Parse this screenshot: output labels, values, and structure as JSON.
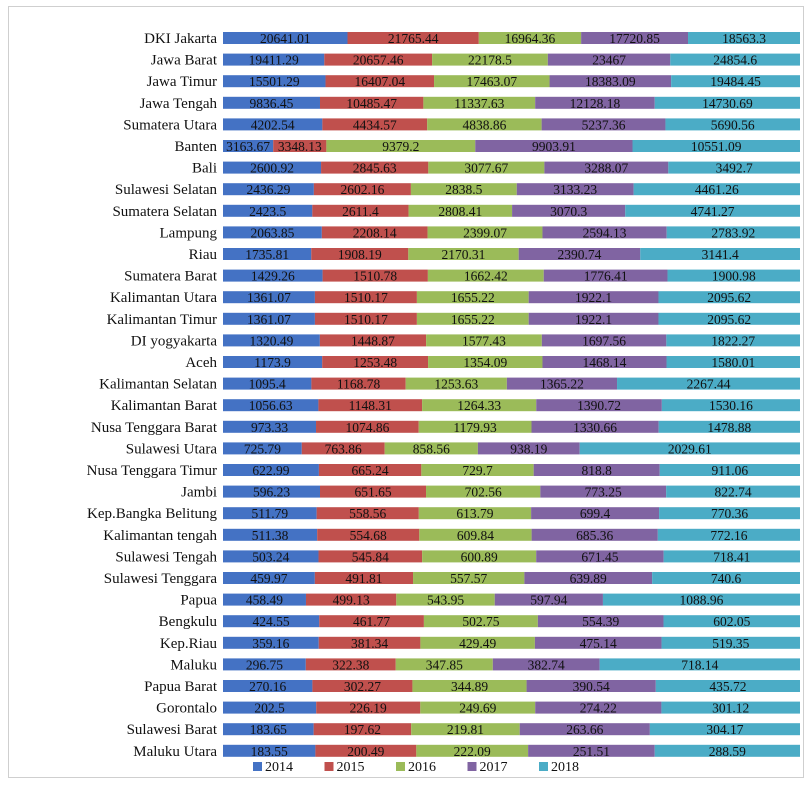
{
  "chart_data": {
    "type": "bar",
    "orientation": "horizontal",
    "stacked": "100%",
    "legend_position": "bottom",
    "grid": false,
    "categories": [
      "DKI Jakarta",
      "Jawa Barat",
      "Jawa Timur",
      "Jawa Tengah",
      "Sumatera Utara",
      "Banten",
      "Bali",
      "Sulawesi Selatan",
      "Sumatera Selatan",
      "Lampung",
      "Riau",
      "Sumatera Barat",
      "Kalimantan Utara",
      "Kalimantan Timur",
      "DI yogyakarta",
      "Aceh",
      "Kalimantan Selatan",
      "Kalimantan Barat",
      "Nusa Tenggara Barat",
      "Sulawesi Utara",
      "Nusa Tenggara Timur",
      "Jambi",
      "Kep.Bangka Belitung",
      "Kalimantan tengah",
      "Sulawesi Tengah",
      "Sulawesi Tenggara",
      "Papua",
      "Bengkulu",
      "Kep.Riau",
      "Maluku",
      "Papua Barat",
      "Gorontalo",
      "Sulawesi Barat",
      "Maluku Utara"
    ],
    "series": [
      {
        "name": "2014",
        "color": "#4472c4",
        "values": [
          20641.01,
          19411.29,
          15501.29,
          9836.45,
          4202.54,
          3163.67,
          2600.92,
          2436.29,
          2423.5,
          2063.85,
          1735.81,
          1429.26,
          1361.07,
          1361.07,
          1320.49,
          1173.9,
          1095.4,
          1056.63,
          973.33,
          725.79,
          622.99,
          596.23,
          511.79,
          511.38,
          503.24,
          459.97,
          458.49,
          424.55,
          359.16,
          296.75,
          270.16,
          202.5,
          183.65,
          183.55
        ]
      },
      {
        "name": "2015",
        "color": "#c0504d",
        "values": [
          21765.44,
          20657.46,
          16407.04,
          10485.47,
          4434.57,
          3348.13,
          2845.63,
          2602.16,
          2611.4,
          2208.14,
          1908.19,
          1510.78,
          1510.17,
          1510.17,
          1448.87,
          1253.48,
          1168.78,
          1148.31,
          1074.86,
          763.86,
          665.24,
          651.65,
          558.56,
          554.68,
          545.84,
          491.81,
          499.13,
          461.77,
          381.34,
          322.38,
          302.27,
          226.19,
          197.62,
          200.49
        ]
      },
      {
        "name": "2016",
        "color": "#9bbb59",
        "values": [
          16964.36,
          22178.5,
          17463.07,
          11337.63,
          4838.86,
          9379.2,
          3077.67,
          2838.5,
          2808.41,
          2399.07,
          2170.31,
          1662.42,
          1655.22,
          1655.22,
          1577.43,
          1354.09,
          1253.63,
          1264.33,
          1179.93,
          858.56,
          729.7,
          702.56,
          613.79,
          609.84,
          600.89,
          557.57,
          543.95,
          502.75,
          429.49,
          347.85,
          344.89,
          249.69,
          219.81,
          222.09
        ]
      },
      {
        "name": "2017",
        "color": "#8064a2",
        "values": [
          17720.85,
          23467,
          18383.09,
          12128.18,
          5237.36,
          9903.91,
          3288.07,
          3133.23,
          3070.3,
          2594.13,
          2390.74,
          1776.41,
          1922.1,
          1922.1,
          1697.56,
          1468.14,
          1365.22,
          1390.72,
          1330.66,
          938.19,
          818.8,
          773.25,
          699.4,
          685.36,
          671.45,
          639.89,
          597.94,
          554.39,
          475.14,
          382.74,
          390.54,
          274.22,
          263.66,
          251.51
        ]
      },
      {
        "name": "2018",
        "color": "#4bacc6",
        "values": [
          18563.3,
          24854.6,
          19484.45,
          14730.69,
          5690.56,
          10551.09,
          3492.7,
          4461.26,
          4741.27,
          2783.92,
          3141.4,
          1900.98,
          2095.62,
          2095.62,
          1822.27,
          1580.01,
          2267.44,
          1530.16,
          1478.88,
          2029.61,
          911.06,
          822.74,
          770.36,
          772.16,
          718.41,
          740.6,
          1088.96,
          602.05,
          519.35,
          718.14,
          435.72,
          301.12,
          304.17,
          288.59
        ]
      }
    ]
  }
}
